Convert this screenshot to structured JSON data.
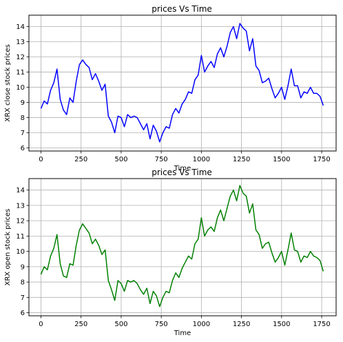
{
  "chart_data": [
    {
      "type": "line",
      "title": "prices Vs Time",
      "xlabel": "Time",
      "ylabel": "XRX close stock prices",
      "xlim": [
        -75,
        1840
      ],
      "ylim": [
        5.8,
        14.75
      ],
      "xticks": [
        0,
        250,
        500,
        750,
        1000,
        1250,
        1500,
        1750
      ],
      "yticks": [
        6,
        7,
        8,
        9,
        10,
        11,
        12,
        13,
        14
      ],
      "grid": true,
      "color": "#0000ff",
      "series": [
        {
          "x": [
            0,
            20,
            40,
            60,
            80,
            100,
            120,
            140,
            160,
            180,
            200,
            220,
            240,
            260,
            280,
            300,
            320,
            340,
            360,
            380,
            400,
            420,
            440,
            460,
            480,
            500,
            520,
            540,
            560,
            580,
            600,
            620,
            640,
            660,
            680,
            700,
            720,
            740,
            760,
            780,
            800,
            820,
            840,
            860,
            880,
            900,
            920,
            940,
            960,
            980,
            1000,
            1020,
            1040,
            1060,
            1080,
            1100,
            1120,
            1140,
            1160,
            1180,
            1200,
            1220,
            1240,
            1260,
            1280,
            1300,
            1320,
            1340,
            1360,
            1380,
            1400,
            1420,
            1440,
            1460,
            1480,
            1500,
            1520,
            1540,
            1560,
            1580,
            1600,
            1620,
            1640,
            1660,
            1680,
            1700,
            1720,
            1740,
            1760
          ],
          "y": [
            8.6,
            9.1,
            8.9,
            9.8,
            10.3,
            11.2,
            9.2,
            8.5,
            8.2,
            9.3,
            9.0,
            10.4,
            11.5,
            11.8,
            11.5,
            11.3,
            10.5,
            10.9,
            10.4,
            9.8,
            10.2,
            8.1,
            7.7,
            7.0,
            8.1,
            8.0,
            7.4,
            8.2,
            8.0,
            8.1,
            8.0,
            7.6,
            7.2,
            7.6,
            6.6,
            7.5,
            7.1,
            6.4,
            7.0,
            7.4,
            7.3,
            8.2,
            8.6,
            8.3,
            8.9,
            9.2,
            9.7,
            9.6,
            10.5,
            10.8,
            12.1,
            11.0,
            11.4,
            11.7,
            11.3,
            12.2,
            12.6,
            12.0,
            12.7,
            13.6,
            14.0,
            13.2,
            14.2,
            13.9,
            13.7,
            12.4,
            13.2,
            11.4,
            11.1,
            10.3,
            10.4,
            10.6,
            9.9,
            9.3,
            9.6,
            10.0,
            9.2,
            10.1,
            11.2,
            10.1,
            10.1,
            9.3,
            9.7,
            9.6,
            10.0,
            9.6,
            9.6,
            9.4,
            8.8
          ]
        }
      ]
    },
    {
      "type": "line",
      "title": "prices Vs Time",
      "xlabel": "Time",
      "ylabel": "XRX open stock prices",
      "xlim": [
        -75,
        1840
      ],
      "ylim": [
        5.8,
        14.75
      ],
      "xticks": [
        0,
        250,
        500,
        750,
        1000,
        1250,
        1500,
        1750
      ],
      "yticks": [
        6,
        7,
        8,
        9,
        10,
        11,
        12,
        13,
        14
      ],
      "grid": true,
      "color": "#008000",
      "series": [
        {
          "x": [
            0,
            20,
            40,
            60,
            80,
            100,
            120,
            140,
            160,
            180,
            200,
            220,
            240,
            260,
            280,
            300,
            320,
            340,
            360,
            380,
            400,
            420,
            440,
            460,
            480,
            500,
            520,
            540,
            560,
            580,
            600,
            620,
            640,
            660,
            680,
            700,
            720,
            740,
            760,
            780,
            800,
            820,
            840,
            860,
            880,
            900,
            920,
            940,
            960,
            980,
            1000,
            1020,
            1040,
            1060,
            1080,
            1100,
            1120,
            1140,
            1160,
            1180,
            1200,
            1220,
            1240,
            1260,
            1280,
            1300,
            1320,
            1340,
            1360,
            1380,
            1400,
            1420,
            1440,
            1460,
            1480,
            1500,
            1520,
            1540,
            1560,
            1580,
            1600,
            1620,
            1640,
            1660,
            1680,
            1700,
            1720,
            1740,
            1760
          ],
          "y": [
            8.5,
            9.0,
            8.8,
            9.7,
            10.2,
            11.1,
            9.2,
            8.4,
            8.3,
            9.2,
            9.1,
            10.4,
            11.4,
            11.8,
            11.5,
            11.2,
            10.5,
            10.8,
            10.4,
            9.8,
            10.1,
            8.1,
            7.5,
            6.8,
            8.1,
            7.9,
            7.4,
            8.1,
            8.0,
            8.1,
            7.9,
            7.5,
            7.2,
            7.6,
            6.6,
            7.4,
            7.1,
            6.4,
            7.0,
            7.4,
            7.3,
            8.1,
            8.6,
            8.3,
            8.9,
            9.3,
            9.7,
            9.5,
            10.5,
            10.8,
            12.2,
            11.0,
            11.4,
            11.6,
            11.3,
            12.2,
            12.7,
            12.0,
            12.8,
            13.6,
            14.0,
            13.3,
            14.3,
            13.8,
            13.6,
            12.5,
            13.1,
            11.4,
            11.1,
            10.2,
            10.5,
            10.6,
            9.9,
            9.3,
            9.6,
            10.0,
            9.1,
            10.1,
            11.2,
            10.1,
            10.0,
            9.3,
            9.7,
            9.6,
            10.0,
            9.7,
            9.6,
            9.4,
            8.7
          ]
        }
      ]
    }
  ]
}
